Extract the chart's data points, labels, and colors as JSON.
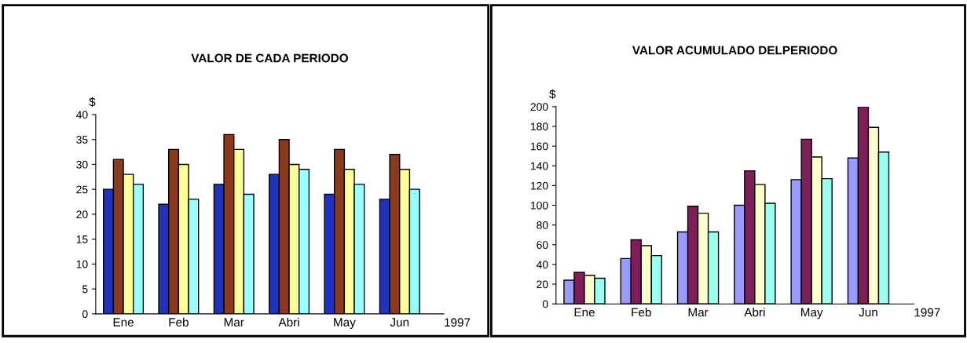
{
  "chart_data": [
    {
      "type": "bar",
      "title": "VALOR DE CADA PERIODO",
      "ylabel": "$",
      "categories": [
        "Ene",
        "Feb",
        "Mar",
        "Abri",
        "May",
        "Jun"
      ],
      "series": [
        {
          "color": "#2233bb",
          "values": [
            25,
            22,
            26,
            28,
            24,
            23
          ]
        },
        {
          "color": "#8b3a1e",
          "values": [
            31,
            33,
            36,
            35,
            33,
            32
          ]
        },
        {
          "color": "#ffff99",
          "values": [
            28,
            30,
            33,
            30,
            29,
            29
          ]
        },
        {
          "color": "#99ffff",
          "values": [
            26,
            23,
            24,
            29,
            26,
            25
          ]
        }
      ],
      "ylim": [
        0,
        40
      ],
      "yticks": [
        0,
        5,
        10,
        15,
        20,
        25,
        30,
        35,
        40
      ],
      "grid": false,
      "annotations": [
        "1997"
      ]
    },
    {
      "type": "bar",
      "title": "VALOR ACUMULADO DELPERIODO",
      "ylabel": "$",
      "categories": [
        "Ene",
        "Feb",
        "Mar",
        "Abri",
        "May",
        "Jun"
      ],
      "series": [
        {
          "color": "#9999ff",
          "values": [
            24,
            46,
            73,
            100,
            126,
            148
          ]
        },
        {
          "color": "#7f1f5a",
          "values": [
            32,
            65,
            99,
            135,
            167,
            200
          ]
        },
        {
          "color": "#ffffcc",
          "values": [
            29,
            59,
            92,
            121,
            149,
            179
          ]
        },
        {
          "color": "#99ffee",
          "values": [
            26,
            49,
            73,
            102,
            127,
            154
          ]
        }
      ],
      "ylim": [
        0,
        200
      ],
      "yticks": [
        0,
        20,
        40,
        60,
        80,
        100,
        120,
        140,
        160,
        180,
        200
      ],
      "grid": false,
      "annotations": [
        "1997"
      ]
    }
  ]
}
